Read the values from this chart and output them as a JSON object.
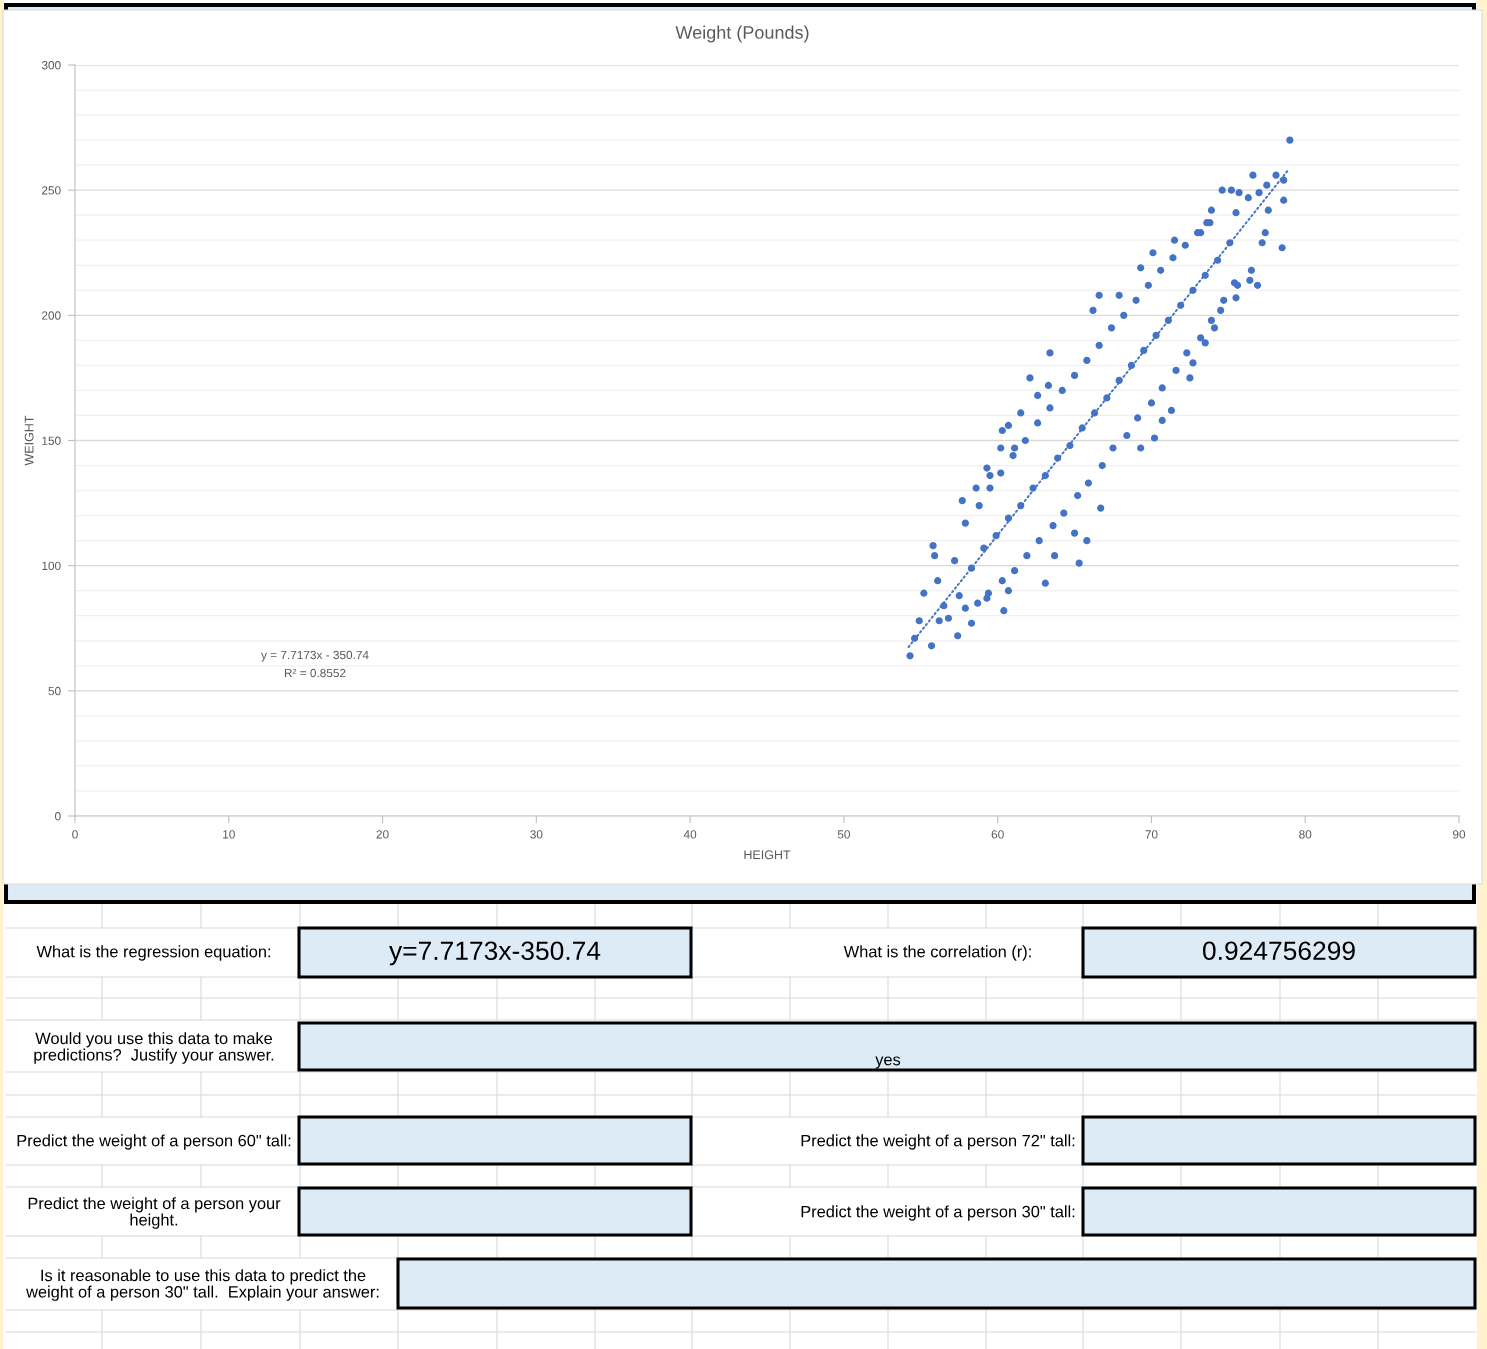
{
  "chart_data": [
    {
      "type": "scatter",
      "title": "Weight (Pounds)",
      "xlabel": "HEIGHT",
      "ylabel": "WEIGHT",
      "xlim": [
        0,
        90
      ],
      "xticks": [
        0,
        10,
        20,
        30,
        40,
        50,
        60,
        70,
        80,
        90
      ],
      "ylim": [
        0,
        300
      ],
      "yticks": [
        0,
        {
          "value": 10,
          "label": null
        },
        {
          "value": 20,
          "label": null
        },
        {
          "value": 30,
          "label": null
        },
        {
          "value": 40,
          "label": null
        },
        50,
        {
          "value": 60,
          "label": null
        },
        {
          "value": 70,
          "label": null
        },
        {
          "value": 80,
          "label": null
        },
        {
          "value": 90,
          "label": null
        },
        100,
        {
          "value": 110,
          "label": null
        },
        {
          "value": 120,
          "label": null
        },
        {
          "value": 130,
          "label": null
        },
        {
          "value": 140,
          "label": null
        },
        150,
        {
          "value": 160,
          "label": null
        },
        {
          "value": 170,
          "label": null
        },
        {
          "value": 180,
          "label": null
        },
        {
          "value": 190,
          "label": null
        },
        200,
        {
          "value": 210,
          "label": null
        },
        {
          "value": 220,
          "label": null
        },
        {
          "value": 230,
          "label": null
        },
        {
          "value": 240,
          "label": null
        },
        250,
        {
          "value": 260,
          "label": null
        },
        {
          "value": 270,
          "label": null
        },
        {
          "value": 280,
          "label": null
        },
        {
          "value": 290,
          "label": null
        },
        300
      ],
      "grid": "y",
      "series": [
        {
          "type": "scatter",
          "color": "#4472c4",
          "marker": "circle",
          "x": [
            79.0,
            76.6,
            78.1,
            78.6,
            77.5,
            77.0,
            74.6,
            75.2,
            75.7,
            78.6,
            76.3,
            77.6,
            73.9,
            75.5,
            78.5,
            77.4,
            77.2,
            73.6,
            76.5,
            76.9,
            76.4,
            75.5,
            75.6,
            74.5,
            74.1,
            73.5,
            72.7,
            72.5,
            71.3,
            70.2,
            69.3,
            70.7,
            66.7,
            65.8,
            65.3,
            65.0,
            63.1,
            63.7,
            60.7,
            60.4,
            59.3,
            58.3,
            57.4,
            55.7,
            54.3,
            54.6,
            54.9,
            56.2,
            56.8,
            57.9,
            55.2,
            55.8,
            55.9,
            57.7,
            58.6,
            59.3,
            60.2,
            60.3,
            60.7,
            61.5,
            62.1,
            63.4,
            63.3,
            62.6,
            66.2,
            66.6,
            67.9,
            69.3,
            70.1,
            71.5,
            73.2,
            61.1,
            59.5,
            56.5,
            56.1,
            57.5,
            57.2,
            58.7,
            58.3,
            57.9,
            59.4,
            59.1,
            58.8,
            60.3,
            59.9,
            59.5,
            61.1,
            60.7,
            60.2,
            61.9,
            61.5,
            61.0,
            62.7,
            62.3,
            61.8,
            63.6,
            63.1,
            62.6,
            64.3,
            63.9,
            63.4,
            65.2,
            64.7,
            64.2,
            65.9,
            65.5,
            65.0,
            66.8,
            66.3,
            65.8,
            67.5,
            67.1,
            66.6,
            68.4,
            67.9,
            67.4,
            69.1,
            68.7,
            68.2,
            70.0,
            69.5,
            69.0,
            70.7,
            70.3,
            69.8,
            71.6,
            71.1,
            70.6,
            72.3,
            71.9,
            71.4,
            73.2,
            72.7,
            72.2,
            73.9,
            73.5,
            73.0,
            74.7,
            74.3,
            73.8,
            75.4,
            75.1
          ],
          "values": [
            270,
            256,
            256,
            254,
            252,
            249,
            250,
            250,
            249,
            246,
            247,
            242,
            242,
            241,
            227,
            233,
            229,
            237,
            218,
            212,
            214,
            207,
            212,
            202,
            195,
            189,
            181,
            175,
            162,
            151,
            147,
            158,
            123,
            110,
            101,
            113,
            93,
            104,
            90,
            82,
            87,
            77,
            72,
            68,
            64,
            71,
            78,
            78,
            79,
            83,
            89,
            108,
            104,
            126,
            131,
            139,
            147,
            154,
            156,
            161,
            175,
            185,
            172,
            168,
            202,
            208,
            208,
            219,
            225,
            230,
            233,
            147,
            136,
            84,
            94,
            88,
            102,
            85,
            99,
            117,
            89,
            107,
            124,
            94,
            112,
            131,
            98,
            119,
            137,
            104,
            124,
            144,
            110,
            131,
            150,
            116,
            136,
            157,
            121,
            143,
            163,
            128,
            148,
            170,
            133,
            155,
            176,
            140,
            161,
            182,
            147,
            167,
            188,
            152,
            174,
            195,
            159,
            180,
            200,
            165,
            186,
            206,
            171,
            192,
            212,
            178,
            198,
            218,
            185,
            204,
            223,
            191,
            210,
            228,
            198,
            216,
            233,
            206,
            222,
            237,
            213,
            229
          ]
        },
        {
          "type": "line",
          "color": "#4472c4",
          "line_style": "dotted",
          "x": [
            54.2,
            78.9
          ],
          "values": [
            67.5,
            258.1
          ]
        }
      ],
      "annotations": [
        "y = 7.7173x - 350.74",
        "R² = 0.8552"
      ]
    },
    {
      "type": "other",
      "annotations": [
        "What is the regression equation:",
        "y=7.7173x-350.74",
        "What is the correlation (r):",
        "0.924756299",
        "Would you use this data to make predictions?  Justify your answer.",
        "yes",
        "Predict the weight of a person 60\" tall:",
        "Predict the weight of a person 72\" tall:",
        "Predict the weight of a person your height.",
        "Predict the weight of a person 30\" tall:",
        "Is it reasonable to use this data to predict the weight of a person 30\" tall.  Explain your answer:"
      ]
    }
  ]
}
